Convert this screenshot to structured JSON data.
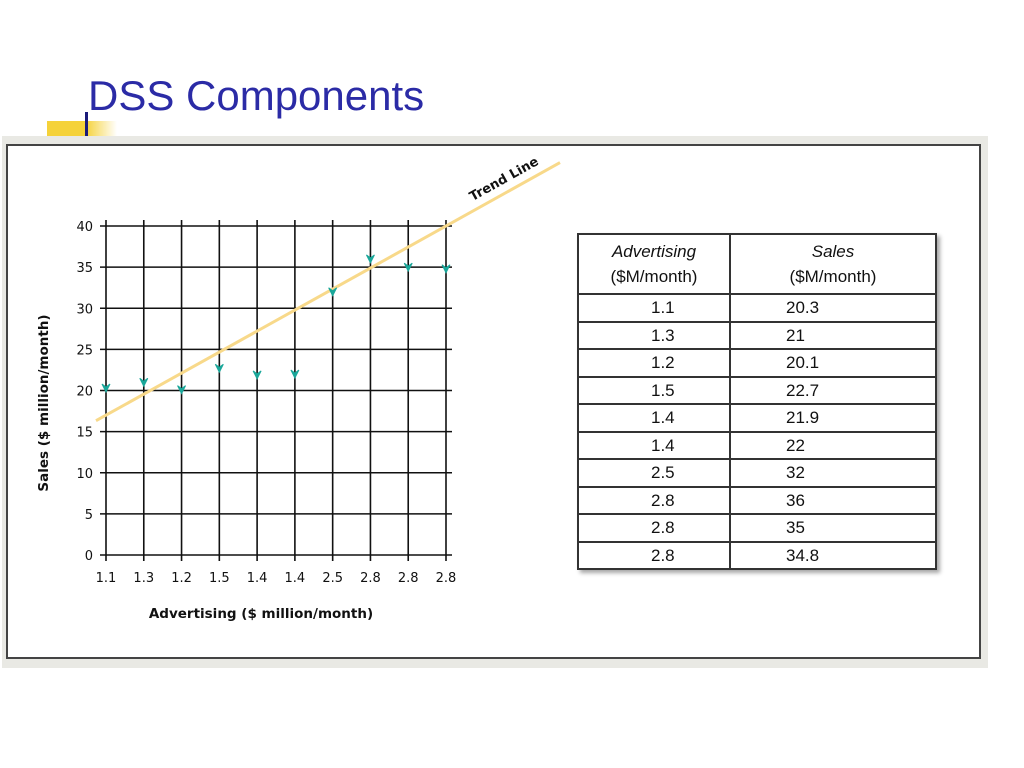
{
  "slide": {
    "title": "DSS Components"
  },
  "colors": {
    "title": "#2b2ba6",
    "accent": "#f5d23a",
    "point": "#1aa79a",
    "trend": "#f8d98a",
    "grid": "#111111"
  },
  "chart_data": {
    "type": "scatter",
    "xlabel": "Advertising ($ million/month)",
    "ylabel": "Sales ($ million/month)",
    "x_tick_labels": [
      "1.1",
      "1.3",
      "1.2",
      "1.5",
      "1.4",
      "1.4",
      "2.5",
      "2.8",
      "2.8",
      "2.8"
    ],
    "y_ticks": [
      0,
      5,
      10,
      15,
      20,
      25,
      30,
      35,
      40
    ],
    "ylim": [
      0,
      40
    ],
    "grid": true,
    "points": [
      {
        "x": "1.1",
        "y": 20.3
      },
      {
        "x": "1.3",
        "y": 21
      },
      {
        "x": "1.2",
        "y": 20.1
      },
      {
        "x": "1.5",
        "y": 22.7
      },
      {
        "x": "1.4",
        "y": 21.9
      },
      {
        "x": "1.4",
        "y": 22
      },
      {
        "x": "2.5",
        "y": 32
      },
      {
        "x": "2.8",
        "y": 36
      },
      {
        "x": "2.8",
        "y": 35
      },
      {
        "x": "2.8",
        "y": 34.8
      }
    ],
    "trend_line": {
      "label": "Trend Line",
      "start_y": 17,
      "end_y": 40
    }
  },
  "table": {
    "headers": [
      {
        "name": "Advertising",
        "unit": "($M/month)"
      },
      {
        "name": "Sales",
        "unit": "($M/month)"
      }
    ],
    "rows": [
      [
        "1.1",
        "20.3"
      ],
      [
        "1.3",
        "21"
      ],
      [
        "1.2",
        "20.1"
      ],
      [
        "1.5",
        "22.7"
      ],
      [
        "1.4",
        "21.9"
      ],
      [
        "1.4",
        "22"
      ],
      [
        "2.5",
        "32"
      ],
      [
        "2.8",
        "36"
      ],
      [
        "2.8",
        "35"
      ],
      [
        "2.8",
        "34.8"
      ]
    ]
  }
}
